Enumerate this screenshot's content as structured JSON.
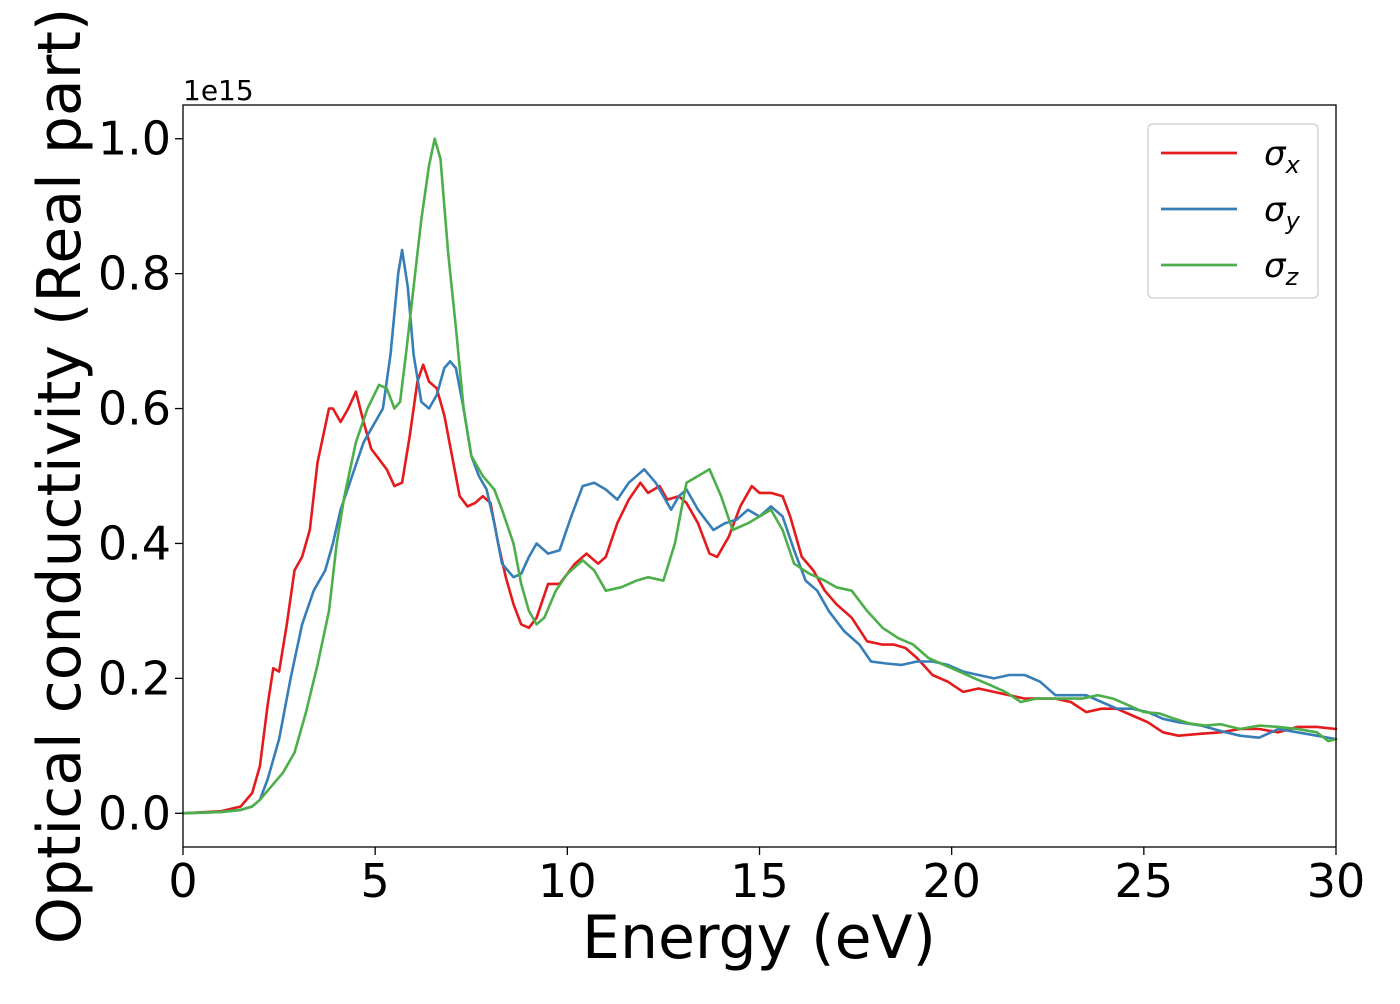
{
  "chart_data": {
    "type": "line",
    "xlabel": "Energy (eV)",
    "ylabel": "Optical conductivity (Real part)",
    "y_offset_label": "1e15",
    "xlim": [
      0,
      30
    ],
    "ylim": [
      -0.05,
      1.05
    ],
    "xticks": [
      0,
      5,
      10,
      15,
      20,
      25,
      30
    ],
    "xtick_labels": [
      "0",
      "5",
      "10",
      "15",
      "20",
      "25",
      "30"
    ],
    "yticks": [
      0.0,
      0.2,
      0.4,
      0.6,
      0.8,
      1.0
    ],
    "ytick_labels": [
      "0.0",
      "0.2",
      "0.4",
      "0.6",
      "0.8",
      "1.0"
    ],
    "grid": false,
    "legend_position": "top-right",
    "series": [
      {
        "name": "σx",
        "name_base": "σ",
        "name_sub": "x",
        "color": "#e41a1c",
        "points": [
          [
            0,
            0
          ],
          [
            1,
            0.003
          ],
          [
            1.5,
            0.01
          ],
          [
            1.8,
            0.03
          ],
          [
            2.0,
            0.07
          ],
          [
            2.2,
            0.16
          ],
          [
            2.35,
            0.215
          ],
          [
            2.5,
            0.21
          ],
          [
            2.7,
            0.28
          ],
          [
            2.9,
            0.36
          ],
          [
            3.1,
            0.38
          ],
          [
            3.3,
            0.42
          ],
          [
            3.5,
            0.52
          ],
          [
            3.8,
            0.6
          ],
          [
            3.9,
            0.6
          ],
          [
            4.1,
            0.58
          ],
          [
            4.3,
            0.6
          ],
          [
            4.5,
            0.625
          ],
          [
            4.7,
            0.58
          ],
          [
            4.9,
            0.54
          ],
          [
            5.1,
            0.525
          ],
          [
            5.3,
            0.51
          ],
          [
            5.5,
            0.485
          ],
          [
            5.7,
            0.49
          ],
          [
            5.9,
            0.56
          ],
          [
            6.1,
            0.64
          ],
          [
            6.25,
            0.665
          ],
          [
            6.4,
            0.64
          ],
          [
            6.6,
            0.63
          ],
          [
            6.8,
            0.59
          ],
          [
            7.0,
            0.53
          ],
          [
            7.2,
            0.47
          ],
          [
            7.4,
            0.455
          ],
          [
            7.6,
            0.46
          ],
          [
            7.8,
            0.47
          ],
          [
            8.0,
            0.46
          ],
          [
            8.2,
            0.4
          ],
          [
            8.4,
            0.35
          ],
          [
            8.6,
            0.31
          ],
          [
            8.8,
            0.28
          ],
          [
            9.0,
            0.275
          ],
          [
            9.2,
            0.29
          ],
          [
            9.5,
            0.34
          ],
          [
            9.8,
            0.34
          ],
          [
            10.2,
            0.37
          ],
          [
            10.5,
            0.385
          ],
          [
            10.8,
            0.37
          ],
          [
            11.0,
            0.38
          ],
          [
            11.3,
            0.43
          ],
          [
            11.6,
            0.465
          ],
          [
            11.9,
            0.49
          ],
          [
            12.1,
            0.475
          ],
          [
            12.4,
            0.485
          ],
          [
            12.6,
            0.465
          ],
          [
            12.9,
            0.47
          ],
          [
            13.1,
            0.46
          ],
          [
            13.4,
            0.43
          ],
          [
            13.7,
            0.385
          ],
          [
            13.9,
            0.38
          ],
          [
            14.2,
            0.41
          ],
          [
            14.5,
            0.455
          ],
          [
            14.8,
            0.485
          ],
          [
            15.0,
            0.475
          ],
          [
            15.3,
            0.475
          ],
          [
            15.6,
            0.47
          ],
          [
            15.8,
            0.44
          ],
          [
            16.1,
            0.38
          ],
          [
            16.4,
            0.36
          ],
          [
            16.7,
            0.33
          ],
          [
            17.0,
            0.31
          ],
          [
            17.4,
            0.29
          ],
          [
            17.8,
            0.255
          ],
          [
            18.2,
            0.25
          ],
          [
            18.5,
            0.25
          ],
          [
            18.8,
            0.245
          ],
          [
            19.1,
            0.23
          ],
          [
            19.5,
            0.205
          ],
          [
            19.9,
            0.195
          ],
          [
            20.3,
            0.18
          ],
          [
            20.7,
            0.185
          ],
          [
            21.1,
            0.18
          ],
          [
            21.5,
            0.175
          ],
          [
            21.9,
            0.17
          ],
          [
            22.3,
            0.17
          ],
          [
            22.7,
            0.17
          ],
          [
            23.1,
            0.165
          ],
          [
            23.5,
            0.15
          ],
          [
            23.9,
            0.155
          ],
          [
            24.3,
            0.155
          ],
          [
            24.7,
            0.145
          ],
          [
            25.1,
            0.135
          ],
          [
            25.5,
            0.12
          ],
          [
            25.9,
            0.115
          ],
          [
            26.5,
            0.118
          ],
          [
            27.0,
            0.12
          ],
          [
            27.5,
            0.125
          ],
          [
            28.0,
            0.125
          ],
          [
            28.5,
            0.12
          ],
          [
            29.0,
            0.128
          ],
          [
            29.5,
            0.128
          ],
          [
            30,
            0.125
          ]
        ]
      },
      {
        "name": "σy",
        "name_base": "σ",
        "name_sub": "y",
        "color": "#377eb8",
        "points": [
          [
            0,
            0
          ],
          [
            1,
            0.002
          ],
          [
            1.5,
            0.005
          ],
          [
            1.8,
            0.01
          ],
          [
            2.0,
            0.02
          ],
          [
            2.2,
            0.05
          ],
          [
            2.5,
            0.11
          ],
          [
            2.8,
            0.2
          ],
          [
            3.1,
            0.28
          ],
          [
            3.4,
            0.33
          ],
          [
            3.7,
            0.36
          ],
          [
            3.9,
            0.4
          ],
          [
            4.1,
            0.45
          ],
          [
            4.4,
            0.5
          ],
          [
            4.7,
            0.55
          ],
          [
            5.0,
            0.58
          ],
          [
            5.2,
            0.6
          ],
          [
            5.4,
            0.68
          ],
          [
            5.6,
            0.8
          ],
          [
            5.7,
            0.835
          ],
          [
            5.85,
            0.78
          ],
          [
            6.0,
            0.68
          ],
          [
            6.2,
            0.61
          ],
          [
            6.4,
            0.6
          ],
          [
            6.6,
            0.62
          ],
          [
            6.8,
            0.66
          ],
          [
            6.95,
            0.67
          ],
          [
            7.1,
            0.66
          ],
          [
            7.3,
            0.6
          ],
          [
            7.5,
            0.53
          ],
          [
            7.7,
            0.5
          ],
          [
            7.9,
            0.48
          ],
          [
            8.1,
            0.43
          ],
          [
            8.3,
            0.37
          ],
          [
            8.6,
            0.35
          ],
          [
            8.8,
            0.355
          ],
          [
            9.0,
            0.38
          ],
          [
            9.2,
            0.4
          ],
          [
            9.5,
            0.385
          ],
          [
            9.8,
            0.39
          ],
          [
            10.1,
            0.44
          ],
          [
            10.4,
            0.485
          ],
          [
            10.7,
            0.49
          ],
          [
            11.0,
            0.48
          ],
          [
            11.3,
            0.465
          ],
          [
            11.6,
            0.49
          ],
          [
            12.0,
            0.51
          ],
          [
            12.3,
            0.49
          ],
          [
            12.5,
            0.47
          ],
          [
            12.7,
            0.45
          ],
          [
            12.9,
            0.47
          ],
          [
            13.1,
            0.48
          ],
          [
            13.4,
            0.45
          ],
          [
            13.8,
            0.42
          ],
          [
            14.1,
            0.43
          ],
          [
            14.4,
            0.435
          ],
          [
            14.7,
            0.45
          ],
          [
            15.0,
            0.44
          ],
          [
            15.3,
            0.455
          ],
          [
            15.6,
            0.44
          ],
          [
            15.9,
            0.39
          ],
          [
            16.2,
            0.345
          ],
          [
            16.5,
            0.33
          ],
          [
            16.8,
            0.3
          ],
          [
            17.2,
            0.27
          ],
          [
            17.6,
            0.25
          ],
          [
            17.9,
            0.225
          ],
          [
            18.3,
            0.222
          ],
          [
            18.7,
            0.22
          ],
          [
            19.1,
            0.225
          ],
          [
            19.5,
            0.225
          ],
          [
            19.9,
            0.22
          ],
          [
            20.3,
            0.21
          ],
          [
            20.7,
            0.205
          ],
          [
            21.1,
            0.2
          ],
          [
            21.5,
            0.205
          ],
          [
            21.9,
            0.205
          ],
          [
            22.3,
            0.195
          ],
          [
            22.7,
            0.175
          ],
          [
            23.1,
            0.175
          ],
          [
            23.5,
            0.175
          ],
          [
            23.9,
            0.165
          ],
          [
            24.3,
            0.155
          ],
          [
            24.7,
            0.155
          ],
          [
            25.1,
            0.15
          ],
          [
            25.5,
            0.14
          ],
          [
            25.9,
            0.135
          ],
          [
            26.5,
            0.13
          ],
          [
            27.0,
            0.122
          ],
          [
            27.5,
            0.115
          ],
          [
            28.0,
            0.112
          ],
          [
            28.5,
            0.125
          ],
          [
            29.0,
            0.12
          ],
          [
            29.5,
            0.115
          ],
          [
            30,
            0.11
          ]
        ]
      },
      {
        "name": "σz",
        "name_base": "σ",
        "name_sub": "z",
        "color": "#4daf4a",
        "points": [
          [
            0,
            0
          ],
          [
            1,
            0.002
          ],
          [
            1.5,
            0.005
          ],
          [
            1.8,
            0.01
          ],
          [
            2.0,
            0.02
          ],
          [
            2.3,
            0.04
          ],
          [
            2.6,
            0.06
          ],
          [
            2.9,
            0.09
          ],
          [
            3.2,
            0.15
          ],
          [
            3.5,
            0.22
          ],
          [
            3.8,
            0.3
          ],
          [
            4.0,
            0.4
          ],
          [
            4.2,
            0.47
          ],
          [
            4.5,
            0.55
          ],
          [
            4.8,
            0.6
          ],
          [
            5.1,
            0.635
          ],
          [
            5.3,
            0.63
          ],
          [
            5.5,
            0.6
          ],
          [
            5.65,
            0.61
          ],
          [
            5.8,
            0.68
          ],
          [
            6.0,
            0.78
          ],
          [
            6.2,
            0.88
          ],
          [
            6.4,
            0.96
          ],
          [
            6.55,
            1.0
          ],
          [
            6.7,
            0.97
          ],
          [
            6.9,
            0.83
          ],
          [
            7.1,
            0.72
          ],
          [
            7.3,
            0.6
          ],
          [
            7.5,
            0.53
          ],
          [
            7.8,
            0.5
          ],
          [
            8.1,
            0.48
          ],
          [
            8.3,
            0.45
          ],
          [
            8.6,
            0.4
          ],
          [
            8.8,
            0.34
          ],
          [
            9.0,
            0.3
          ],
          [
            9.2,
            0.28
          ],
          [
            9.4,
            0.29
          ],
          [
            9.7,
            0.33
          ],
          [
            10.0,
            0.355
          ],
          [
            10.4,
            0.375
          ],
          [
            10.7,
            0.36
          ],
          [
            11.0,
            0.33
          ],
          [
            11.4,
            0.335
          ],
          [
            11.8,
            0.345
          ],
          [
            12.1,
            0.35
          ],
          [
            12.5,
            0.345
          ],
          [
            12.8,
            0.4
          ],
          [
            13.1,
            0.49
          ],
          [
            13.4,
            0.5
          ],
          [
            13.7,
            0.51
          ],
          [
            14.0,
            0.47
          ],
          [
            14.3,
            0.42
          ],
          [
            14.7,
            0.43
          ],
          [
            15.0,
            0.44
          ],
          [
            15.3,
            0.45
          ],
          [
            15.6,
            0.42
          ],
          [
            15.9,
            0.37
          ],
          [
            16.3,
            0.355
          ],
          [
            16.7,
            0.345
          ],
          [
            17.0,
            0.335
          ],
          [
            17.4,
            0.33
          ],
          [
            17.8,
            0.3
          ],
          [
            18.2,
            0.275
          ],
          [
            18.6,
            0.26
          ],
          [
            19.0,
            0.25
          ],
          [
            19.4,
            0.23
          ],
          [
            19.8,
            0.22
          ],
          [
            20.2,
            0.21
          ],
          [
            20.6,
            0.2
          ],
          [
            21.0,
            0.19
          ],
          [
            21.4,
            0.18
          ],
          [
            21.8,
            0.165
          ],
          [
            22.2,
            0.17
          ],
          [
            22.6,
            0.17
          ],
          [
            23.0,
            0.17
          ],
          [
            23.4,
            0.17
          ],
          [
            23.8,
            0.175
          ],
          [
            24.2,
            0.17
          ],
          [
            24.6,
            0.16
          ],
          [
            25.0,
            0.15
          ],
          [
            25.4,
            0.148
          ],
          [
            25.8,
            0.14
          ],
          [
            26.2,
            0.133
          ],
          [
            26.6,
            0.13
          ],
          [
            27.0,
            0.132
          ],
          [
            27.5,
            0.125
          ],
          [
            28.0,
            0.13
          ],
          [
            28.5,
            0.128
          ],
          [
            29.0,
            0.125
          ],
          [
            29.5,
            0.12
          ],
          [
            29.8,
            0.107
          ],
          [
            30,
            0.11
          ]
        ]
      }
    ]
  }
}
